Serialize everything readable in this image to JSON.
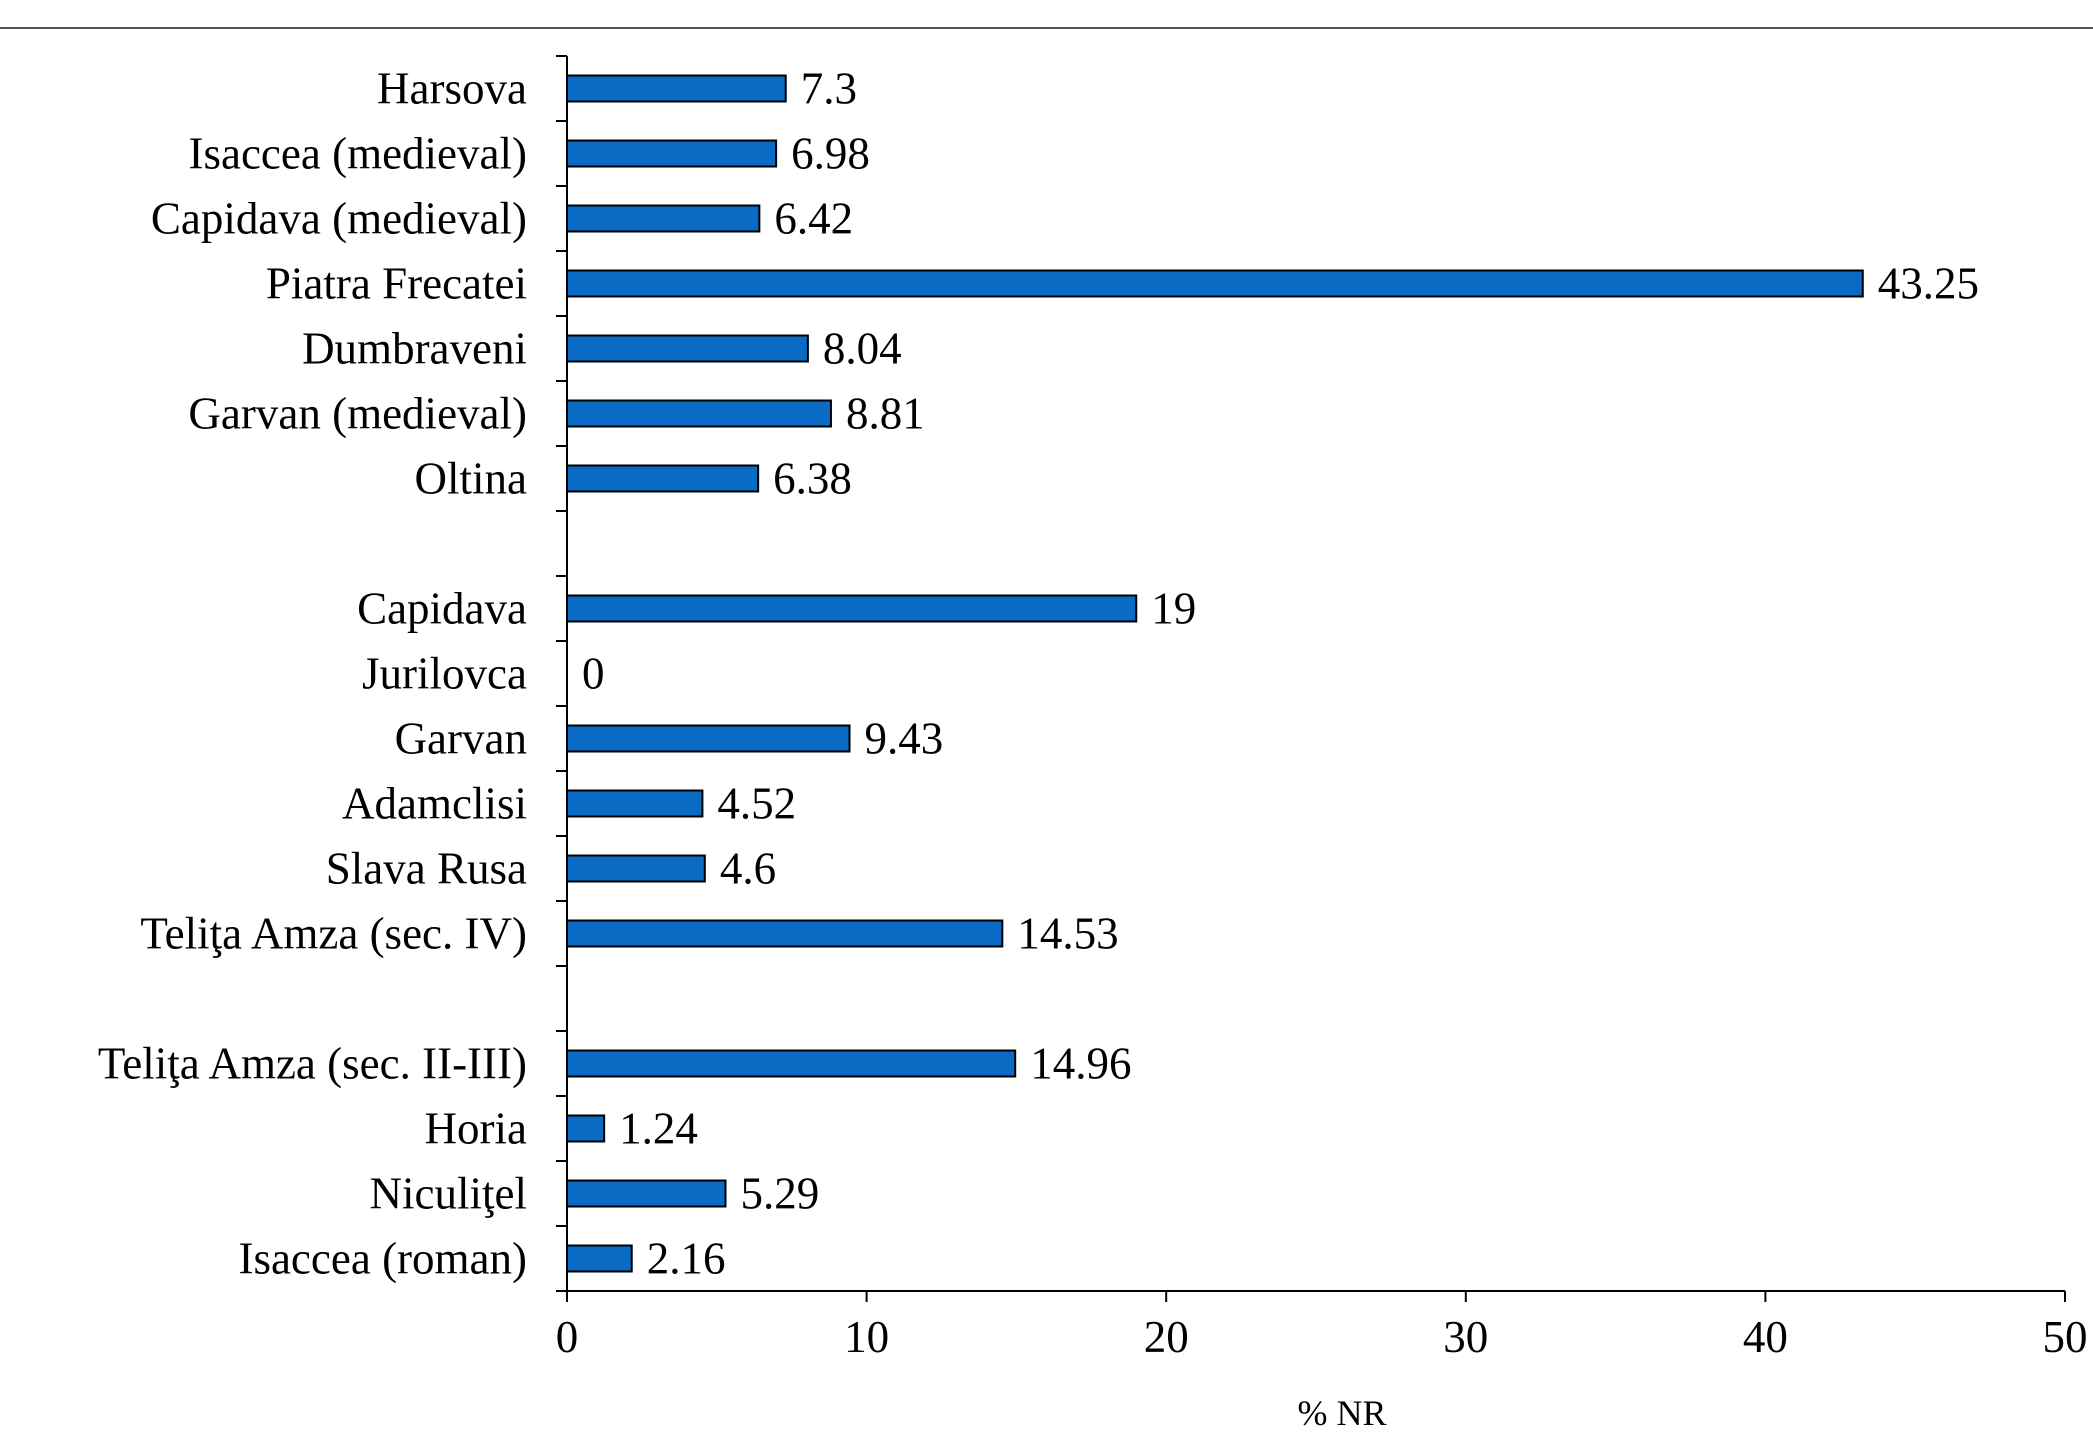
{
  "chart_data": {
    "type": "bar",
    "orientation": "horizontal",
    "categories": [
      "Harsova",
      "Isaccea (medieval)",
      "Capidava (medieval)",
      "Piatra Frecatei",
      "Dumbraveni",
      "Garvan (medieval)",
      "Oltina",
      "",
      "Capidava",
      "Jurilovca",
      "Garvan",
      "Adamclisi",
      "Slava Rusa",
      "Teliţa Amza (sec. IV)",
      "",
      "Teliţa Amza (sec. II-III)",
      "Horia",
      "Niculiţel",
      "Isaccea (roman)"
    ],
    "values": [
      7.3,
      6.98,
      6.42,
      43.25,
      8.04,
      8.81,
      6.38,
      null,
      19,
      0,
      9.43,
      4.52,
      4.6,
      14.53,
      null,
      14.96,
      1.24,
      5.29,
      2.16
    ],
    "value_labels": [
      "7.3",
      "6.98",
      "6.42",
      "43.25",
      "8.04",
      "8.81",
      "6.38",
      "",
      "19",
      "0",
      "9.43",
      "4.52",
      "4.6",
      "14.53",
      "",
      "14.96",
      "1.24",
      "5.29",
      "2.16"
    ],
    "x_ticks": [
      "0",
      "10",
      "20",
      "30",
      "40",
      "50"
    ],
    "xlim": [
      0,
      50
    ],
    "title": "",
    "xlabel": "% NR",
    "ylabel": "",
    "grid": false,
    "legend": false,
    "colors": {
      "bar": "#0A6BC4",
      "bar_outline": "#000000",
      "text": "#000000",
      "background": "#ffffff"
    }
  }
}
